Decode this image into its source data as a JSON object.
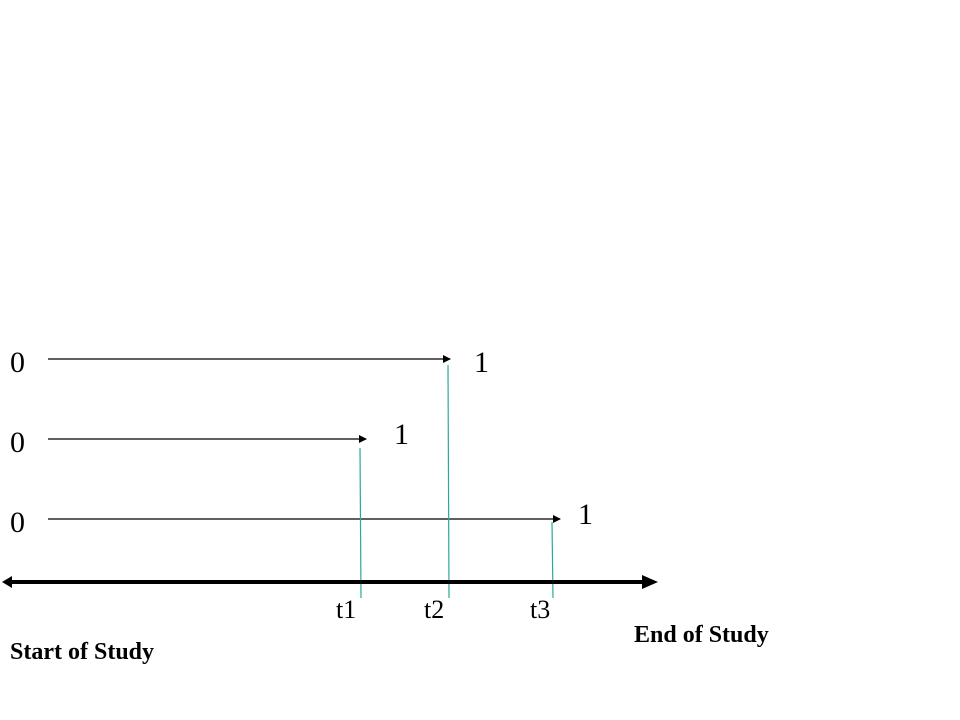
{
  "subjects": [
    {
      "start_label": "0",
      "end_label": "1",
      "event_time": "t2"
    },
    {
      "start_label": "0",
      "end_label": "1",
      "event_time": "t1"
    },
    {
      "start_label": "0",
      "end_label": "1",
      "event_time": "t3"
    }
  ],
  "time_marks": [
    "t1",
    "t2",
    "t3"
  ],
  "start_label": "Start of Study",
  "end_label": "End of Study",
  "colors": {
    "line": "#000000",
    "marker": "#2ca89a"
  }
}
